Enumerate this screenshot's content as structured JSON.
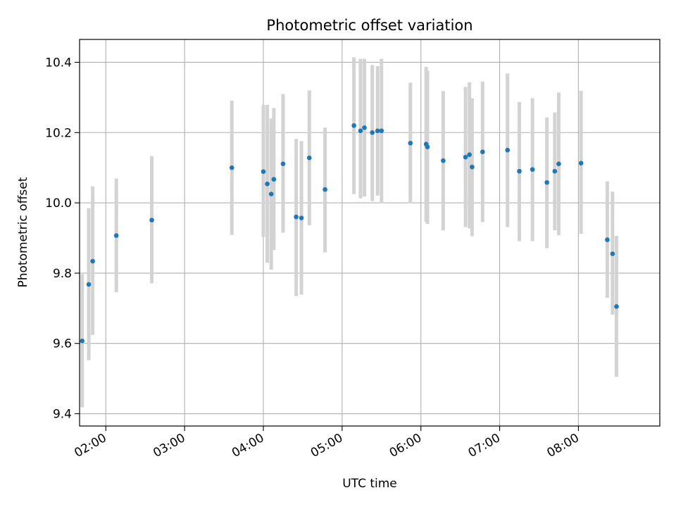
{
  "chart_data": {
    "type": "scatter",
    "title": "Photometric offset variation",
    "xlabel": "UTC time",
    "ylabel": "Photometric offset",
    "grid": true,
    "x_unit": "hours UTC",
    "xlim": [
      "01:40",
      "09:02"
    ],
    "ylim": [
      9.365,
      10.465
    ],
    "x_ticks": [
      "02:00",
      "03:00",
      "04:00",
      "05:00",
      "06:00",
      "07:00",
      "08:00"
    ],
    "y_ticks": [
      "9.4",
      "9.6",
      "9.8",
      "10.0",
      "10.2",
      "10.4"
    ],
    "point_color": "#1f77b4",
    "errorbar_color": "#d3d3d3",
    "points": [
      {
        "time": "01:42",
        "y": 9.607,
        "low": 9.418,
        "high": 9.797
      },
      {
        "time": "01:47",
        "y": 9.768,
        "low": 9.552,
        "high": 9.985
      },
      {
        "time": "01:50",
        "y": 9.834,
        "low": 9.624,
        "high": 10.047
      },
      {
        "time": "02:08",
        "y": 9.907,
        "low": 9.746,
        "high": 10.069
      },
      {
        "time": "02:35",
        "y": 9.951,
        "low": 9.771,
        "high": 10.133
      },
      {
        "time": "03:36",
        "y": 10.1,
        "low": 9.909,
        "high": 10.291
      },
      {
        "time": "04:00",
        "y": 10.089,
        "low": 9.903,
        "high": 10.279
      },
      {
        "time": "04:03",
        "y": 10.054,
        "low": 9.829,
        "high": 10.279
      },
      {
        "time": "04:06",
        "y": 10.025,
        "low": 9.81,
        "high": 10.24
      },
      {
        "time": "04:08",
        "y": 10.067,
        "low": 9.866,
        "high": 10.27
      },
      {
        "time": "04:15",
        "y": 10.111,
        "low": 9.915,
        "high": 10.31
      },
      {
        "time": "04:25",
        "y": 9.96,
        "low": 9.735,
        "high": 10.182
      },
      {
        "time": "04:29",
        "y": 9.957,
        "low": 9.739,
        "high": 10.176
      },
      {
        "time": "04:35",
        "y": 10.128,
        "low": 9.936,
        "high": 10.32
      },
      {
        "time": "04:47",
        "y": 10.038,
        "low": 9.859,
        "high": 10.214
      },
      {
        "time": "05:09",
        "y": 10.22,
        "low": 10.025,
        "high": 10.414
      },
      {
        "time": "05:14",
        "y": 10.205,
        "low": 10.013,
        "high": 10.41
      },
      {
        "time": "05:17",
        "y": 10.214,
        "low": 10.018,
        "high": 10.41
      },
      {
        "time": "05:23",
        "y": 10.2,
        "low": 10.005,
        "high": 10.392
      },
      {
        "time": "05:27",
        "y": 10.205,
        "low": 10.021,
        "high": 10.389
      },
      {
        "time": "05:30",
        "y": 10.205,
        "low": 9.999,
        "high": 10.41
      },
      {
        "time": "05:52",
        "y": 10.17,
        "low": 9.999,
        "high": 10.342
      },
      {
        "time": "06:04",
        "y": 10.167,
        "low": 9.946,
        "high": 10.387
      },
      {
        "time": "06:05",
        "y": 10.159,
        "low": 9.94,
        "high": 10.376
      },
      {
        "time": "06:17",
        "y": 10.12,
        "low": 9.922,
        "high": 10.318
      },
      {
        "time": "06:34",
        "y": 10.13,
        "low": 9.931,
        "high": 10.33
      },
      {
        "time": "06:37",
        "y": 10.137,
        "low": 9.927,
        "high": 10.343
      },
      {
        "time": "06:39",
        "y": 10.102,
        "low": 9.905,
        "high": 10.297
      },
      {
        "time": "06:47",
        "y": 10.145,
        "low": 9.945,
        "high": 10.345
      },
      {
        "time": "07:06",
        "y": 10.15,
        "low": 9.931,
        "high": 10.368
      },
      {
        "time": "07:15",
        "y": 10.09,
        "low": 9.891,
        "high": 10.287
      },
      {
        "time": "07:25",
        "y": 10.095,
        "low": 9.891,
        "high": 10.298
      },
      {
        "time": "07:36",
        "y": 10.058,
        "low": 9.871,
        "high": 10.243
      },
      {
        "time": "07:42",
        "y": 10.09,
        "low": 9.922,
        "high": 10.257
      },
      {
        "time": "07:45",
        "y": 10.111,
        "low": 9.908,
        "high": 10.314
      },
      {
        "time": "08:02",
        "y": 10.113,
        "low": 9.912,
        "high": 10.319
      },
      {
        "time": "08:22",
        "y": 9.895,
        "low": 9.73,
        "high": 10.061
      },
      {
        "time": "08:26",
        "y": 9.855,
        "low": 9.682,
        "high": 10.032
      },
      {
        "time": "08:29",
        "y": 9.705,
        "low": 9.505,
        "high": 9.906
      }
    ]
  }
}
